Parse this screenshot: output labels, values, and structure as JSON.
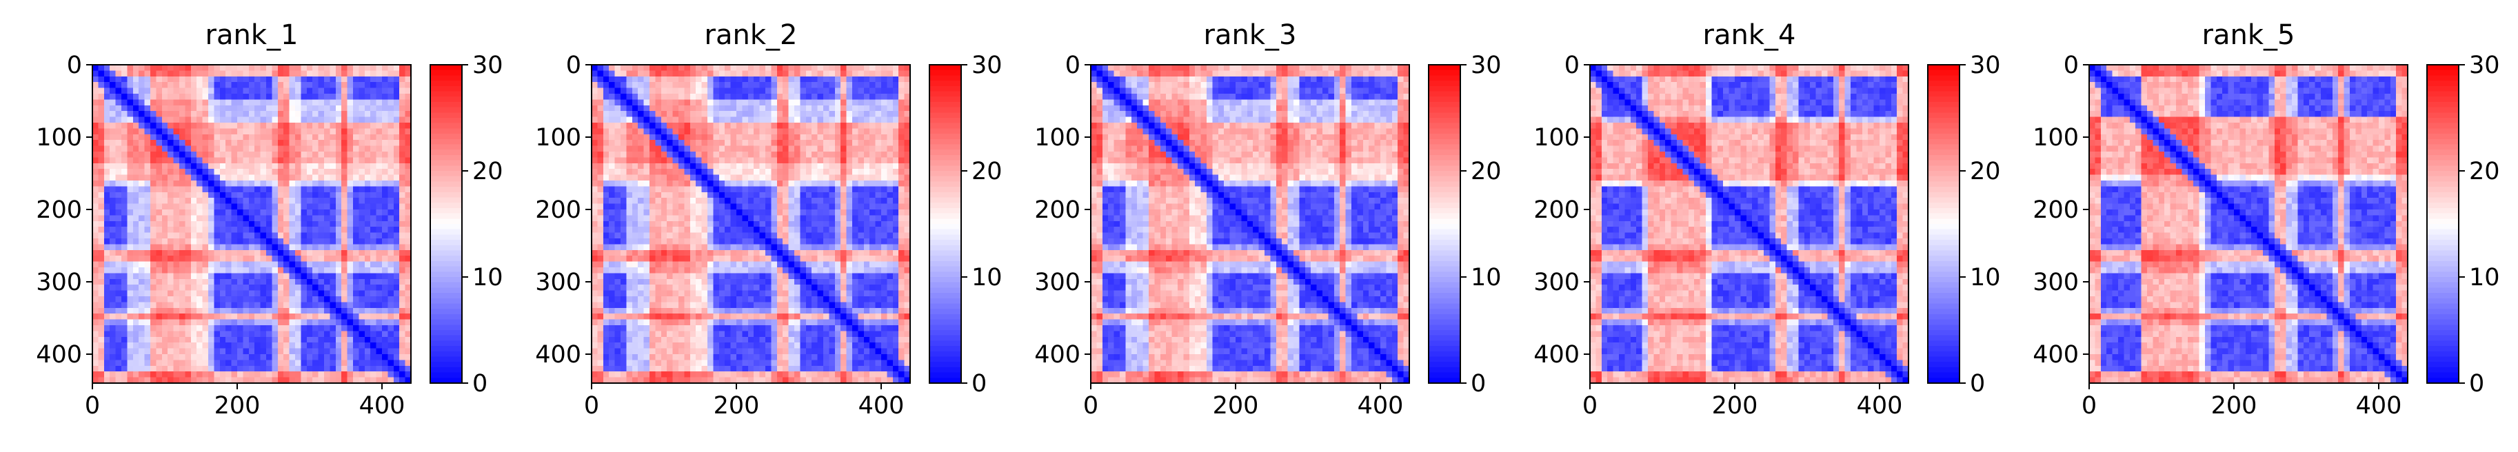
{
  "chart_data": [
    {
      "type": "heatmap",
      "title": "rank_1",
      "x_ticks": [
        0,
        200,
        400
      ],
      "y_ticks": [
        0,
        100,
        200,
        300,
        400
      ],
      "xlim": [
        0,
        440
      ],
      "ylim": [
        440,
        0
      ],
      "colorbar": {
        "ticks": [
          0,
          10,
          20,
          30
        ],
        "range": [
          0,
          30
        ],
        "colormap": "bwr"
      },
      "diagonal_value": 0,
      "low_bands": [
        [
          20,
          45
        ],
        [
          170,
          250
        ],
        [
          285,
          340
        ],
        [
          360,
          425
        ]
      ],
      "high_bands": [
        [
          80,
          135
        ],
        [
          255,
          270
        ],
        [
          345,
          355
        ],
        [
          428,
          440
        ]
      ],
      "mixed_bands": [
        [
          45,
          80
        ],
        [
          135,
          170
        ],
        [
          270,
          285
        ]
      ],
      "bright_columns": [
        [
          95,
          160
        ]
      ]
    },
    {
      "type": "heatmap",
      "title": "rank_2",
      "x_ticks": [
        0,
        200,
        400
      ],
      "y_ticks": [
        0,
        100,
        200,
        300,
        400
      ],
      "xlim": [
        0,
        440
      ],
      "ylim": [
        440,
        0
      ],
      "colorbar": {
        "ticks": [
          0,
          10,
          20,
          30
        ],
        "range": [
          0,
          30
        ],
        "colormap": "bwr"
      },
      "diagonal_value": 0,
      "low_bands": [
        [
          20,
          45
        ],
        [
          170,
          250
        ],
        [
          285,
          340
        ],
        [
          360,
          425
        ]
      ],
      "high_bands": [
        [
          80,
          135
        ],
        [
          255,
          270
        ],
        [
          345,
          355
        ],
        [
          428,
          440
        ]
      ],
      "mixed_bands": [
        [
          45,
          80
        ],
        [
          135,
          170
        ],
        [
          270,
          285
        ]
      ],
      "bright_columns": [
        [
          95,
          160
        ]
      ]
    },
    {
      "type": "heatmap",
      "title": "rank_3",
      "x_ticks": [
        0,
        200,
        400
      ],
      "y_ticks": [
        0,
        100,
        200,
        300,
        400
      ],
      "xlim": [
        0,
        440
      ],
      "ylim": [
        440,
        0
      ],
      "colorbar": {
        "ticks": [
          0,
          10,
          20,
          30
        ],
        "range": [
          0,
          30
        ],
        "colormap": "bwr"
      },
      "diagonal_value": 0,
      "low_bands": [
        [
          20,
          45
        ],
        [
          170,
          250
        ],
        [
          285,
          340
        ],
        [
          360,
          425
        ]
      ],
      "high_bands": [
        [
          80,
          135
        ],
        [
          255,
          270
        ],
        [
          345,
          355
        ],
        [
          428,
          440
        ]
      ],
      "mixed_bands": [
        [
          45,
          80
        ],
        [
          135,
          170
        ],
        [
          270,
          285
        ]
      ],
      "bright_columns": [
        [
          95,
          160
        ]
      ]
    },
    {
      "type": "heatmap",
      "title": "rank_4",
      "x_ticks": [
        0,
        200,
        400
      ],
      "y_ticks": [
        0,
        100,
        200,
        300,
        400
      ],
      "xlim": [
        0,
        440
      ],
      "ylim": [
        440,
        0
      ],
      "colorbar": {
        "ticks": [
          0,
          10,
          20,
          30
        ],
        "range": [
          0,
          30
        ],
        "colormap": "bwr"
      },
      "diagonal_value": 0,
      "low_bands": [
        [
          20,
          70
        ],
        [
          170,
          250
        ],
        [
          285,
          340
        ],
        [
          360,
          425
        ]
      ],
      "high_bands": [
        [
          80,
          160
        ],
        [
          255,
          270
        ],
        [
          345,
          355
        ],
        [
          428,
          440
        ]
      ],
      "mixed_bands": [
        [
          70,
          80
        ],
        [
          270,
          285
        ]
      ],
      "bright_columns": [
        [
          90,
          170
        ]
      ]
    },
    {
      "type": "heatmap",
      "title": "rank_5",
      "x_ticks": [
        0,
        200,
        400
      ],
      "y_ticks": [
        0,
        100,
        200,
        300,
        400
      ],
      "xlim": [
        0,
        440
      ],
      "ylim": [
        440,
        0
      ],
      "colorbar": {
        "ticks": [
          0,
          10,
          20,
          30
        ],
        "range": [
          0,
          30
        ],
        "colormap": "bwr"
      },
      "diagonal_value": 0,
      "low_bands": [
        [
          20,
          70
        ],
        [
          170,
          250
        ],
        [
          285,
          340
        ],
        [
          360,
          425
        ]
      ],
      "high_bands": [
        [
          75,
          150
        ],
        [
          255,
          270
        ],
        [
          345,
          355
        ],
        [
          428,
          440
        ]
      ],
      "mixed_bands": [
        [
          70,
          75
        ],
        [
          270,
          285
        ]
      ],
      "bright_columns": [
        [
          95,
          160
        ]
      ]
    }
  ]
}
